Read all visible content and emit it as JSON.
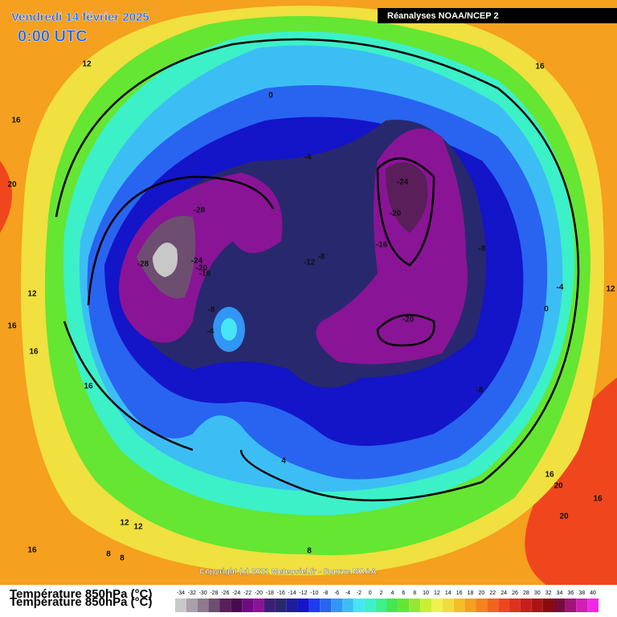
{
  "header": {
    "date": "Vendredi 14 février 2025",
    "time": "0:00 UTC",
    "source_box": "Réanalyses NOAA/NCEP 2",
    "copyright": "Copyright (c) 2021 Meteociel.fr - Source NOAA"
  },
  "legend": {
    "title": "Température 850hPa (°C)",
    "scale": [
      {
        "value": -34,
        "color": "#c8c8c8"
      },
      {
        "value": -32,
        "color": "#aaa0aa"
      },
      {
        "value": -30,
        "color": "#8c7a8c"
      },
      {
        "value": -28,
        "color": "#6e4e70"
      },
      {
        "value": -26,
        "color": "#5a1e5a"
      },
      {
        "value": -24,
        "color": "#4a0a50"
      },
      {
        "value": -22,
        "color": "#700a80"
      },
      {
        "value": -20,
        "color": "#8a1496"
      },
      {
        "value": -18,
        "color": "#3c1e78"
      },
      {
        "value": -16,
        "color": "#28286e"
      },
      {
        "value": -14,
        "color": "#1c1c9c"
      },
      {
        "value": -12,
        "color": "#1414c8"
      },
      {
        "value": -10,
        "color": "#1e3cf0"
      },
      {
        "value": -8,
        "color": "#2864f0"
      },
      {
        "value": -6,
        "color": "#3296f5"
      },
      {
        "value": -4,
        "color": "#3cbef5"
      },
      {
        "value": -2,
        "color": "#46e6f5"
      },
      {
        "value": 0,
        "color": "#3cf0c8"
      },
      {
        "value": 2,
        "color": "#3cf08c"
      },
      {
        "value": 4,
        "color": "#46e650"
      },
      {
        "value": 6,
        "color": "#64e632"
      },
      {
        "value": 8,
        "color": "#96e632"
      },
      {
        "value": 10,
        "color": "#c8f032"
      },
      {
        "value": 12,
        "color": "#f0f050"
      },
      {
        "value": 14,
        "color": "#f0dc3c"
      },
      {
        "value": 16,
        "color": "#f5be28"
      },
      {
        "value": 18,
        "color": "#f5a01e"
      },
      {
        "value": 20,
        "color": "#f5821e"
      },
      {
        "value": 22,
        "color": "#f0641e"
      },
      {
        "value": 24,
        "color": "#f0461e"
      },
      {
        "value": 26,
        "color": "#dc321e"
      },
      {
        "value": 28,
        "color": "#c81e1e"
      },
      {
        "value": 30,
        "color": "#aa1414"
      },
      {
        "value": 32,
        "color": "#8c0a0a"
      },
      {
        "value": 34,
        "color": "#780a3c"
      },
      {
        "value": 36,
        "color": "#a01478"
      },
      {
        "value": 38,
        "color": "#d21eb4"
      },
      {
        "value": 40,
        "color": "#f028e6"
      }
    ]
  },
  "contour_labels": [
    12,
    16,
    20,
    0,
    -4,
    -24,
    -20,
    -28,
    -28,
    -24,
    -20,
    -16,
    -12,
    -8,
    -16,
    -8,
    -4,
    12,
    0,
    16,
    -8,
    -4,
    12,
    16,
    16,
    16,
    -20,
    -8,
    4,
    16,
    20,
    16,
    20,
    12,
    12,
    8,
    8,
    16,
    8
  ]
}
